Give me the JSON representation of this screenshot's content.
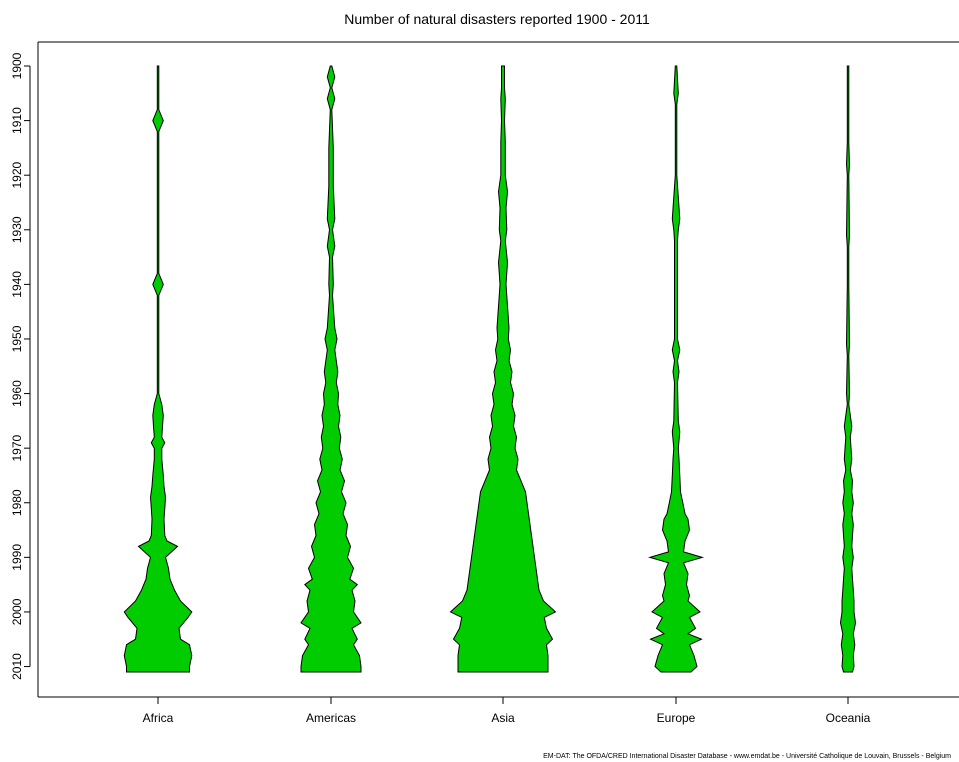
{
  "chart_data": {
    "type": "violin",
    "title": "Number of natural disasters reported 1900 - 2011",
    "source_note": "EM-DAT: The OFDA/CRED International Disaster Database - www.emdat.be - Université Catholique de Louvain, Brussels - Belgium",
    "xlabel": "",
    "ylabel": "",
    "categories": [
      "Africa",
      "Americas",
      "Asia",
      "Europe",
      "Oceania"
    ],
    "y_tick_labels": [
      "1900",
      "1910",
      "1920",
      "1930",
      "1940",
      "1950",
      "1960",
      "1970",
      "1980",
      "1990",
      "2000",
      "2010"
    ],
    "ylim": [
      1900,
      2011
    ],
    "y_inverted": true,
    "fill_color": "#00cc00",
    "outline_color": "#000000",
    "series": [
      {
        "name": "Africa",
        "points": [
          [
            1900,
            1
          ],
          [
            1908,
            1
          ],
          [
            1910,
            7
          ],
          [
            1912,
            1
          ],
          [
            1938,
            1
          ],
          [
            1940,
            7
          ],
          [
            1942,
            1
          ],
          [
            1960,
            1
          ],
          [
            1962,
            5
          ],
          [
            1964,
            7
          ],
          [
            1966,
            6
          ],
          [
            1968,
            5
          ],
          [
            1969,
            9
          ],
          [
            1970,
            5
          ],
          [
            1972,
            5
          ],
          [
            1975,
            7
          ],
          [
            1977,
            8
          ],
          [
            1979,
            10
          ],
          [
            1981,
            9
          ],
          [
            1983,
            8
          ],
          [
            1986,
            9
          ],
          [
            1987,
            12
          ],
          [
            1988,
            26
          ],
          [
            1989,
            18
          ],
          [
            1990,
            10
          ],
          [
            1992,
            14
          ],
          [
            1994,
            16
          ],
          [
            1996,
            22
          ],
          [
            1998,
            30
          ],
          [
            2000,
            45
          ],
          [
            2001,
            40
          ],
          [
            2003,
            28
          ],
          [
            2005,
            30
          ],
          [
            2006,
            42
          ],
          [
            2008,
            45
          ],
          [
            2010,
            42
          ],
          [
            2011,
            42
          ]
        ]
      },
      {
        "name": "Americas",
        "points": [
          [
            1900,
            1
          ],
          [
            1902,
            5
          ],
          [
            1904,
            1
          ],
          [
            1906,
            5
          ],
          [
            1908,
            1
          ],
          [
            1915,
            3
          ],
          [
            1918,
            3
          ],
          [
            1922,
            3
          ],
          [
            1928,
            5
          ],
          [
            1930,
            2
          ],
          [
            1933,
            5
          ],
          [
            1935,
            2
          ],
          [
            1940,
            3
          ],
          [
            1942,
            2
          ],
          [
            1948,
            5
          ],
          [
            1950,
            8
          ],
          [
            1952,
            5
          ],
          [
            1954,
            7
          ],
          [
            1956,
            9
          ],
          [
            1958,
            7
          ],
          [
            1960,
            10
          ],
          [
            1962,
            9
          ],
          [
            1964,
            12
          ],
          [
            1966,
            10
          ],
          [
            1968,
            13
          ],
          [
            1970,
            11
          ],
          [
            1972,
            15
          ],
          [
            1974,
            12
          ],
          [
            1976,
            18
          ],
          [
            1978,
            14
          ],
          [
            1980,
            20
          ],
          [
            1982,
            16
          ],
          [
            1984,
            22
          ],
          [
            1986,
            20
          ],
          [
            1988,
            26
          ],
          [
            1990,
            22
          ],
          [
            1992,
            30
          ],
          [
            1994,
            25
          ],
          [
            1995,
            35
          ],
          [
            1996,
            28
          ],
          [
            1998,
            32
          ],
          [
            2000,
            30
          ],
          [
            2002,
            40
          ],
          [
            2003,
            28
          ],
          [
            2005,
            35
          ],
          [
            2006,
            30
          ],
          [
            2008,
            38
          ],
          [
            2010,
            40
          ],
          [
            2011,
            40
          ]
        ]
      },
      {
        "name": "Asia",
        "points": [
          [
            1900,
            2
          ],
          [
            1904,
            2
          ],
          [
            1906,
            3
          ],
          [
            1910,
            2
          ],
          [
            1914,
            3
          ],
          [
            1920,
            3
          ],
          [
            1923,
            6
          ],
          [
            1926,
            4
          ],
          [
            1930,
            5
          ],
          [
            1932,
            3
          ],
          [
            1936,
            6
          ],
          [
            1940,
            4
          ],
          [
            1944,
            6
          ],
          [
            1948,
            8
          ],
          [
            1950,
            7
          ],
          [
            1952,
            10
          ],
          [
            1954,
            8
          ],
          [
            1956,
            12
          ],
          [
            1958,
            10
          ],
          [
            1960,
            14
          ],
          [
            1962,
            12
          ],
          [
            1964,
            16
          ],
          [
            1966,
            14
          ],
          [
            1968,
            18
          ],
          [
            1970,
            16
          ],
          [
            1972,
            20
          ],
          [
            1974,
            18
          ],
          [
            1976,
            24
          ],
          [
            1978,
            30
          ],
          [
            1980,
            32
          ],
          [
            1982,
            34
          ],
          [
            1984,
            36
          ],
          [
            1986,
            38
          ],
          [
            1988,
            40
          ],
          [
            1990,
            42
          ],
          [
            1992,
            44
          ],
          [
            1994,
            46
          ],
          [
            1996,
            48
          ],
          [
            1998,
            54
          ],
          [
            2000,
            70
          ],
          [
            2001,
            55
          ],
          [
            2003,
            58
          ],
          [
            2005,
            66
          ],
          [
            2006,
            58
          ],
          [
            2008,
            60
          ],
          [
            2010,
            60
          ],
          [
            2011,
            60
          ]
        ]
      },
      {
        "name": "Europe",
        "points": [
          [
            1900,
            1
          ],
          [
            1905,
            3
          ],
          [
            1907,
            1
          ],
          [
            1920,
            1
          ],
          [
            1928,
            5
          ],
          [
            1930,
            3
          ],
          [
            1932,
            2
          ],
          [
            1950,
            2
          ],
          [
            1952,
            5
          ],
          [
            1954,
            2
          ],
          [
            1956,
            4
          ],
          [
            1958,
            2
          ],
          [
            1965,
            3
          ],
          [
            1967,
            5
          ],
          [
            1970,
            3
          ],
          [
            1972,
            4
          ],
          [
            1975,
            5
          ],
          [
            1978,
            6
          ],
          [
            1980,
            9
          ],
          [
            1982,
            12
          ],
          [
            1983,
            16
          ],
          [
            1985,
            18
          ],
          [
            1987,
            12
          ],
          [
            1989,
            10
          ],
          [
            1990,
            35
          ],
          [
            1991,
            10
          ],
          [
            1993,
            16
          ],
          [
            1995,
            14
          ],
          [
            1997,
            18
          ],
          [
            1998,
            16
          ],
          [
            2000,
            32
          ],
          [
            2001,
            18
          ],
          [
            2003,
            26
          ],
          [
            2004,
            16
          ],
          [
            2005,
            34
          ],
          [
            2006,
            18
          ],
          [
            2008,
            24
          ],
          [
            2010,
            28
          ],
          [
            2011,
            20
          ]
        ]
      },
      {
        "name": "Oceania",
        "points": [
          [
            1900,
            1
          ],
          [
            1914,
            1
          ],
          [
            1918,
            2
          ],
          [
            1920,
            1
          ],
          [
            1931,
            2
          ],
          [
            1933,
            1
          ],
          [
            1940,
            1
          ],
          [
            1951,
            2
          ],
          [
            1953,
            1
          ],
          [
            1960,
            2
          ],
          [
            1962,
            1
          ],
          [
            1966,
            5
          ],
          [
            1968,
            3
          ],
          [
            1970,
            4
          ],
          [
            1972,
            5
          ],
          [
            1974,
            3
          ],
          [
            1976,
            6
          ],
          [
            1978,
            5
          ],
          [
            1980,
            7
          ],
          [
            1982,
            5
          ],
          [
            1984,
            7
          ],
          [
            1986,
            6
          ],
          [
            1988,
            5
          ],
          [
            1990,
            7
          ],
          [
            1992,
            5
          ],
          [
            1994,
            6
          ],
          [
            1996,
            7
          ],
          [
            1998,
            8
          ],
          [
            2000,
            8
          ],
          [
            2002,
            10
          ],
          [
            2004,
            7
          ],
          [
            2006,
            9
          ],
          [
            2008,
            7
          ],
          [
            2010,
            8
          ],
          [
            2011,
            6
          ]
        ]
      }
    ]
  }
}
